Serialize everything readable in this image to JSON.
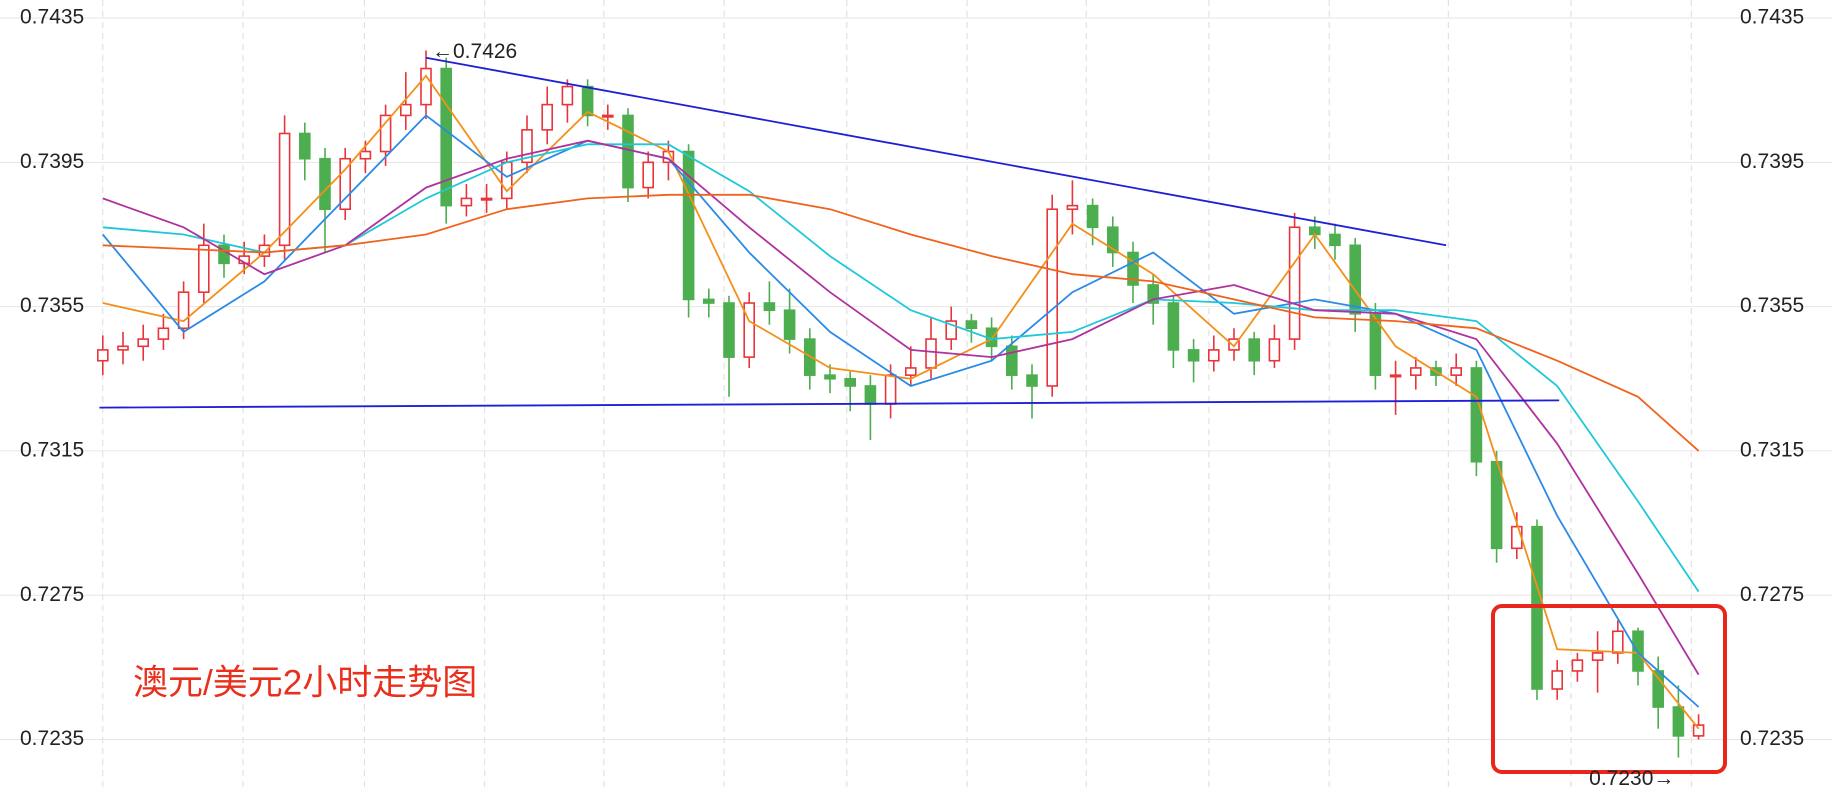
{
  "chart_data": {
    "type": "candlestick",
    "title": "澳元/美元2小时走势图",
    "annotations": [
      "←0.7426",
      "0.7230→"
    ],
    "ylim": [
      0.7221,
      0.744
    ],
    "yticks": [
      0.7435,
      0.7395,
      0.7355,
      0.7315,
      0.7275,
      0.7235
    ],
    "grid": true,
    "up_color": "#e8343a",
    "down_color": "#4cae4f",
    "ohlc": [
      [
        0.734,
        0.7347,
        0.7336,
        0.7343
      ],
      [
        0.7343,
        0.7348,
        0.7339,
        0.7344
      ],
      [
        0.7344,
        0.735,
        0.734,
        0.7346
      ],
      [
        0.7346,
        0.7353,
        0.7343,
        0.7349
      ],
      [
        0.7349,
        0.7362,
        0.7346,
        0.7359
      ],
      [
        0.7359,
        0.7378,
        0.7356,
        0.7372
      ],
      [
        0.7372,
        0.7375,
        0.7363,
        0.7367
      ],
      [
        0.7367,
        0.7373,
        0.7364,
        0.7369
      ],
      [
        0.7369,
        0.7375,
        0.7366,
        0.7372
      ],
      [
        0.7372,
        0.7408,
        0.7368,
        0.7403
      ],
      [
        0.7403,
        0.7406,
        0.739,
        0.7396
      ],
      [
        0.7396,
        0.7399,
        0.737,
        0.7382
      ],
      [
        0.7382,
        0.7399,
        0.7379,
        0.7396
      ],
      [
        0.7396,
        0.7401,
        0.7392,
        0.7398
      ],
      [
        0.7398,
        0.7411,
        0.7394,
        0.7408
      ],
      [
        0.7408,
        0.742,
        0.7404,
        0.7411
      ],
      [
        0.7411,
        0.7426,
        0.7407,
        0.7421
      ],
      [
        0.7421,
        0.7424,
        0.7378,
        0.7383
      ],
      [
        0.7383,
        0.7389,
        0.738,
        0.7385
      ],
      [
        0.7385,
        0.7389,
        0.7381,
        0.7385
      ],
      [
        0.7385,
        0.7398,
        0.7382,
        0.7395
      ],
      [
        0.7395,
        0.7408,
        0.7392,
        0.7404
      ],
      [
        0.7404,
        0.7416,
        0.74,
        0.7411
      ],
      [
        0.7411,
        0.7418,
        0.7406,
        0.7416
      ],
      [
        0.7416,
        0.7418,
        0.7405,
        0.7408
      ],
      [
        0.7408,
        0.7411,
        0.7404,
        0.7408
      ],
      [
        0.7408,
        0.741,
        0.7384,
        0.7388
      ],
      [
        0.7388,
        0.7398,
        0.7385,
        0.7395
      ],
      [
        0.7395,
        0.7401,
        0.739,
        0.7398
      ],
      [
        0.7398,
        0.74,
        0.7352,
        0.7357
      ],
      [
        0.7357,
        0.736,
        0.7352,
        0.7356
      ],
      [
        0.7356,
        0.7358,
        0.733,
        0.7341
      ],
      [
        0.7341,
        0.7359,
        0.7338,
        0.7356
      ],
      [
        0.7356,
        0.7362,
        0.735,
        0.7354
      ],
      [
        0.7354,
        0.736,
        0.7342,
        0.7346
      ],
      [
        0.7346,
        0.7349,
        0.7332,
        0.7336
      ],
      [
        0.7336,
        0.7339,
        0.7331,
        0.7335
      ],
      [
        0.7335,
        0.7337,
        0.7326,
        0.7333
      ],
      [
        0.7333,
        0.7336,
        0.7318,
        0.7328
      ],
      [
        0.7328,
        0.7339,
        0.7324,
        0.7336
      ],
      [
        0.7336,
        0.7344,
        0.7333,
        0.7338
      ],
      [
        0.7338,
        0.7352,
        0.7335,
        0.7346
      ],
      [
        0.7346,
        0.7355,
        0.7343,
        0.7351
      ],
      [
        0.7351,
        0.7353,
        0.7345,
        0.7349
      ],
      [
        0.7349,
        0.7352,
        0.734,
        0.7344
      ],
      [
        0.7344,
        0.7347,
        0.7332,
        0.7336
      ],
      [
        0.7336,
        0.7339,
        0.7324,
        0.7333
      ],
      [
        0.7333,
        0.7386,
        0.733,
        0.7382
      ],
      [
        0.7382,
        0.739,
        0.7375,
        0.7383
      ],
      [
        0.7383,
        0.7385,
        0.7372,
        0.7377
      ],
      [
        0.7377,
        0.738,
        0.7366,
        0.737
      ],
      [
        0.737,
        0.7373,
        0.7356,
        0.7361
      ],
      [
        0.7361,
        0.7364,
        0.735,
        0.7356
      ],
      [
        0.7356,
        0.7358,
        0.7338,
        0.7343
      ],
      [
        0.7343,
        0.7346,
        0.7334,
        0.734
      ],
      [
        0.734,
        0.7347,
        0.7337,
        0.7343
      ],
      [
        0.7343,
        0.7349,
        0.734,
        0.7346
      ],
      [
        0.7346,
        0.7348,
        0.7336,
        0.734
      ],
      [
        0.734,
        0.735,
        0.7338,
        0.7346
      ],
      [
        0.7346,
        0.7381,
        0.7343,
        0.7377
      ],
      [
        0.7377,
        0.738,
        0.7371,
        0.7375
      ],
      [
        0.7375,
        0.7378,
        0.7368,
        0.7372
      ],
      [
        0.7372,
        0.7374,
        0.7348,
        0.7353
      ],
      [
        0.7353,
        0.7356,
        0.7332,
        0.7336
      ],
      [
        0.7336,
        0.734,
        0.7325,
        0.7336
      ],
      [
        0.7336,
        0.7341,
        0.7332,
        0.7338
      ],
      [
        0.7338,
        0.734,
        0.7333,
        0.7336
      ],
      [
        0.7336,
        0.7342,
        0.7333,
        0.7338
      ],
      [
        0.7338,
        0.734,
        0.7308,
        0.7312
      ],
      [
        0.7312,
        0.7315,
        0.7284,
        0.7288
      ],
      [
        0.7288,
        0.7298,
        0.7285,
        0.7294
      ],
      [
        0.7294,
        0.7296,
        0.7246,
        0.7249
      ],
      [
        0.7249,
        0.7257,
        0.7246,
        0.7254
      ],
      [
        0.7254,
        0.7259,
        0.7251,
        0.7257
      ],
      [
        0.7257,
        0.7265,
        0.7248,
        0.7259
      ],
      [
        0.7259,
        0.7268,
        0.7256,
        0.7265
      ],
      [
        0.7265,
        0.7266,
        0.725,
        0.7254
      ],
      [
        0.7254,
        0.7258,
        0.7238,
        0.7244
      ],
      [
        0.7244,
        0.725,
        0.723,
        0.7236
      ],
      [
        0.7236,
        0.7242,
        0.7235,
        0.7239
      ]
    ],
    "lines": [
      {
        "color": "#f39019",
        "x": [
          0,
          4,
          8,
          12,
          16,
          20,
          24,
          28,
          32,
          36,
          40,
          44,
          48,
          52,
          56,
          60,
          64,
          68,
          72,
          76,
          79
        ],
        "values": [
          0.7356,
          0.7351,
          0.737,
          0.7393,
          0.7419,
          0.7387,
          0.7409,
          0.7398,
          0.7351,
          0.7338,
          0.7335,
          0.7346,
          0.7378,
          0.7364,
          0.7344,
          0.7375,
          0.7344,
          0.733,
          0.726,
          0.7259,
          0.7238
        ]
      },
      {
        "color": "#2a8be6",
        "x": [
          0,
          4,
          8,
          12,
          16,
          20,
          24,
          28,
          32,
          36,
          40,
          44,
          48,
          52,
          56,
          60,
          64,
          68,
          72,
          76,
          79
        ],
        "values": [
          0.7375,
          0.7348,
          0.7362,
          0.7385,
          0.7408,
          0.7391,
          0.7401,
          0.7396,
          0.737,
          0.7348,
          0.7333,
          0.734,
          0.7359,
          0.737,
          0.7353,
          0.7357,
          0.7353,
          0.7343,
          0.7297,
          0.7259,
          0.7244
        ]
      },
      {
        "color": "#1ec8d8",
        "x": [
          0,
          4,
          8,
          12,
          16,
          20,
          24,
          28,
          32,
          36,
          40,
          44,
          48,
          52,
          56,
          60,
          64,
          68,
          72,
          76,
          79
        ],
        "values": [
          0.7377,
          0.7375,
          0.737,
          0.7372,
          0.7385,
          0.7395,
          0.74,
          0.74,
          0.7387,
          0.7369,
          0.7354,
          0.7346,
          0.7348,
          0.7357,
          0.7356,
          0.7354,
          0.7354,
          0.7351,
          0.7333,
          0.7301,
          0.7276
        ]
      },
      {
        "color": "#b0329e",
        "x": [
          0,
          4,
          8,
          12,
          16,
          20,
          24,
          28,
          32,
          36,
          40,
          44,
          48,
          52,
          56,
          60,
          64,
          68,
          72,
          76,
          79
        ],
        "values": [
          0.7385,
          0.7377,
          0.7364,
          0.7372,
          0.7388,
          0.7396,
          0.7401,
          0.7396,
          0.7377,
          0.7359,
          0.7343,
          0.7341,
          0.7346,
          0.7357,
          0.7361,
          0.7354,
          0.7353,
          0.7346,
          0.7317,
          0.7281,
          0.7253
        ]
      },
      {
        "color": "#f0631c",
        "x": [
          0,
          4,
          8,
          12,
          16,
          20,
          24,
          28,
          32,
          36,
          40,
          44,
          48,
          52,
          56,
          60,
          64,
          68,
          72,
          76,
          79
        ],
        "values": [
          0.7372,
          0.7371,
          0.737,
          0.7372,
          0.7375,
          0.7382,
          0.7385,
          0.7386,
          0.7386,
          0.7382,
          0.7375,
          0.7369,
          0.7364,
          0.7362,
          0.7357,
          0.7352,
          0.7351,
          0.7349,
          0.734,
          0.733,
          0.7315
        ]
      }
    ],
    "trendlines": [
      {
        "color": "#1f1fd6",
        "x": [
          16,
          66.5
        ],
        "values": [
          0.7424,
          0.7372
        ]
      },
      {
        "color": "#1f1fd6",
        "x": [
          -0.17,
          72.1
        ],
        "values": [
          0.7327,
          0.7329
        ]
      }
    ]
  }
}
